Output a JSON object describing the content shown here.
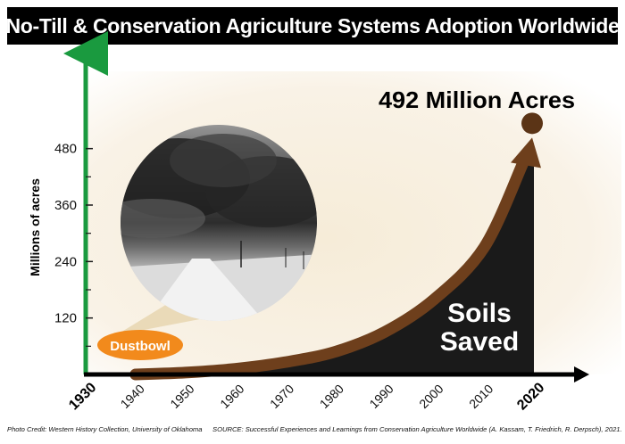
{
  "title": "No-Till & Conservation Agriculture Systems Adoption Worldwide",
  "chart_data": {
    "type": "area",
    "title": "No-Till & Conservation Agriculture Systems Adoption Worldwide",
    "ylabel": "Millions of acres",
    "xlabel": "",
    "x_ticks": [
      "1930",
      "1940",
      "1950",
      "1960",
      "1970",
      "1980",
      "1990",
      "2000",
      "2010",
      "2020"
    ],
    "x_ticks_bold": [
      "1930",
      "2020"
    ],
    "y_ticks": [
      120,
      240,
      360,
      480
    ],
    "xlim": [
      1930,
      2020
    ],
    "ylim": [
      0,
      540
    ],
    "series": [
      {
        "x": [
          1940,
          1950,
          1960,
          1970,
          1980,
          1990,
          2000,
          2010,
          2020
        ],
        "values": [
          0,
          4,
          12,
          26,
          48,
          90,
          160,
          270,
          492
        ]
      }
    ],
    "annotations": {
      "peak_label": "492 Million Acres",
      "soils_line1": "Soils",
      "soils_line2": "Saved",
      "dustbowl": "Dustbowl"
    },
    "colors": {
      "y_axis": "#1a9a3f",
      "x_axis": "#000000",
      "arrow": "#6e3f1c",
      "fill_area": "#1a1a1a",
      "background_glow": "#f6ecd8",
      "dustbowl_badge": "#f28a1c"
    },
    "grid": false,
    "legend": "none"
  },
  "credits": {
    "photo": "Photo Credit: Western History Collection, University of Oklahoma",
    "source": "SOURCE: Successful Experiences and Learnings from Conservation Agriculture Worldwide (A. Kassam, T. Friedrich, R. Derpsch), 2021."
  }
}
